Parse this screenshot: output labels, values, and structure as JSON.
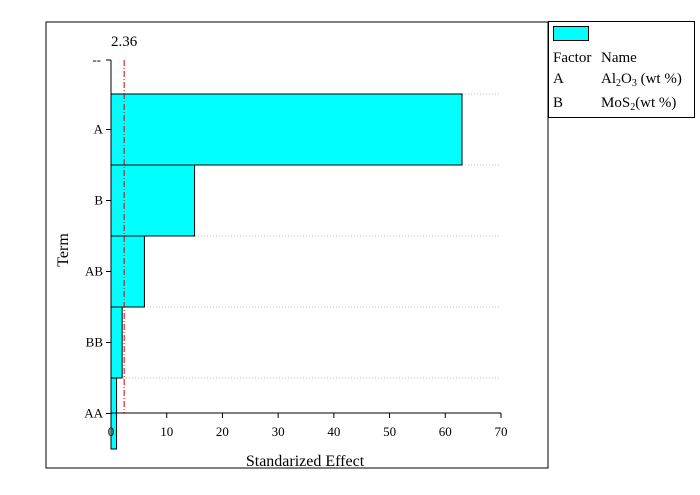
{
  "chart_data": {
    "type": "bar",
    "orientation": "horizontal",
    "title": "",
    "xlabel": "Standarized Effect",
    "ylabel": "Term",
    "xlim": [
      0,
      70
    ],
    "xticks": [
      0,
      10,
      20,
      30,
      40,
      50,
      60,
      70
    ],
    "categories": [
      "A",
      "B",
      "AB",
      "BB",
      "AA"
    ],
    "values": [
      63,
      15,
      6,
      2,
      1
    ],
    "extra_tick_label": "--",
    "reference_line": {
      "value": 2.36,
      "label": "2.36",
      "style": "dash-dot",
      "color": "#cc0000"
    },
    "bar_color": "#00ffff",
    "grid": "dotted-horizontal",
    "legend": {
      "position": "right",
      "header_factor": "Factor",
      "header_name": "Name",
      "entries": [
        {
          "factor": "A",
          "name_main": "Al",
          "name_sub1": "2",
          "name_mid": "O",
          "name_sub2": "3",
          "name_tail": " (wt %)"
        },
        {
          "factor": "B",
          "name_main": "MoS",
          "name_sub1": "2",
          "name_tail": "(wt %)"
        }
      ]
    }
  }
}
